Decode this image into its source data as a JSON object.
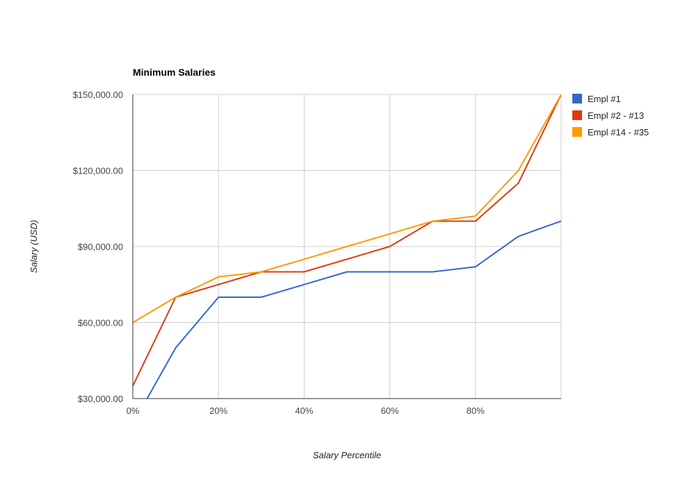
{
  "chart_data": {
    "type": "line",
    "title": "Minimum Salaries",
    "xlabel": "Salary Percentile",
    "ylabel": "Salary (USD)",
    "x": [
      0,
      10,
      20,
      30,
      40,
      50,
      60,
      70,
      80,
      90,
      100
    ],
    "xlim": [
      0,
      100
    ],
    "ylim": [
      30000,
      150000
    ],
    "x_ticks": [
      0,
      20,
      40,
      60,
      80
    ],
    "x_tick_labels": [
      "0%",
      "20%",
      "40%",
      "60%",
      "80%"
    ],
    "y_ticks": [
      30000,
      60000,
      90000,
      120000,
      150000
    ],
    "y_tick_labels": [
      "$30,000.00",
      "$60,000.00",
      "$90,000.00",
      "$120,000.00",
      "$150,000.00"
    ],
    "grid": true,
    "legend_position": "right",
    "series": [
      {
        "name": "Empl #1",
        "color": "#3366cc",
        "values": [
          20000,
          50000,
          70000,
          70000,
          75000,
          80000,
          80000,
          80000,
          82000,
          94000,
          100000
        ]
      },
      {
        "name": "Empl #2 - #13",
        "color": "#dc3912",
        "values": [
          35000,
          70000,
          75000,
          80000,
          80000,
          85000,
          90000,
          100000,
          100000,
          115000,
          150000
        ]
      },
      {
        "name": "Empl #14 - #35",
        "color": "#ff9900",
        "values": [
          60000,
          70000,
          78000,
          80000,
          85000,
          90000,
          95000,
          100000,
          102000,
          120000,
          150000
        ]
      }
    ]
  }
}
